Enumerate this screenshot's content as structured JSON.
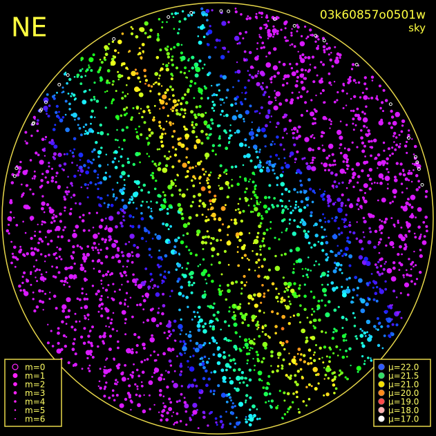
{
  "header": {
    "direction": "NE",
    "frame_id": "03k60857o0501w",
    "filter": "sky"
  },
  "magnitude_legend": [
    {
      "label": "m=0"
    },
    {
      "label": "m=1"
    },
    {
      "label": "m=2"
    },
    {
      "label": "m=3"
    },
    {
      "label": "m=4"
    },
    {
      "label": "m=5"
    },
    {
      "label": "m=6"
    }
  ],
  "brightness_legend": [
    {
      "label": "μ=22.0",
      "color": "#2f5bff"
    },
    {
      "label": "μ=21.5",
      "color": "#33dd66"
    },
    {
      "label": "μ=21.0",
      "color": "#f5e000"
    },
    {
      "label": "μ=20.0",
      "color": "#ff8a1a"
    },
    {
      "label": "μ=19.0",
      "color": "#ff4a4a"
    },
    {
      "label": "μ=18.0",
      "color": "#ffb0b0"
    },
    {
      "label": "μ=17.0",
      "color": "#ffffff"
    }
  ]
}
